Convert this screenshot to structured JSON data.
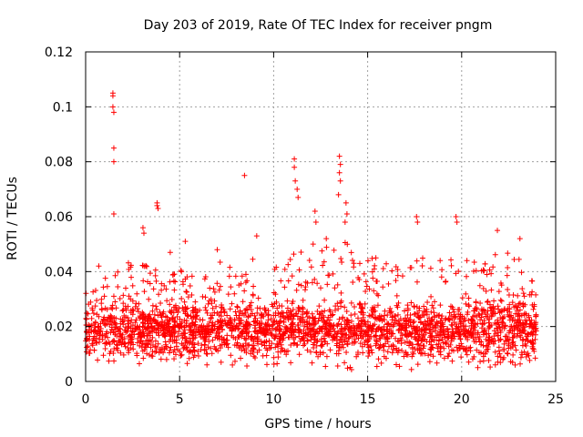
{
  "chart_data": {
    "type": "scatter",
    "title": "Day 203 of 2019, Rate Of TEC Index for receiver pngm",
    "xlabel": "GPS time / hours",
    "ylabel": "ROTI / TECUs",
    "xlim": [
      0,
      25
    ],
    "ylim": [
      0,
      0.12
    ],
    "xticks": [
      "0",
      "5",
      "10",
      "15",
      "20",
      "25"
    ],
    "yticks": [
      "0",
      "0.02",
      "0.04",
      "0.06",
      "0.08",
      "0.1",
      "0.12"
    ],
    "xtick_values": [
      0,
      5,
      10,
      15,
      20,
      25
    ],
    "ytick_values": [
      0,
      0.02,
      0.04,
      0.06,
      0.08,
      0.1,
      0.12
    ],
    "grid": true,
    "marker": "+",
    "series": [
      {
        "name": "ROTI",
        "color": "#ff0000",
        "outliers": [
          {
            "x": 1.45,
            "y": 0.105
          },
          {
            "x": 1.45,
            "y": 0.104
          },
          {
            "x": 1.45,
            "y": 0.1
          },
          {
            "x": 1.5,
            "y": 0.098
          },
          {
            "x": 1.5,
            "y": 0.085
          },
          {
            "x": 1.5,
            "y": 0.08
          },
          {
            "x": 1.5,
            "y": 0.061
          },
          {
            "x": 3.05,
            "y": 0.056
          },
          {
            "x": 3.1,
            "y": 0.054
          },
          {
            "x": 3.8,
            "y": 0.065
          },
          {
            "x": 3.8,
            "y": 0.064
          },
          {
            "x": 3.85,
            "y": 0.063
          },
          {
            "x": 8.45,
            "y": 0.075
          },
          {
            "x": 11.1,
            "y": 0.081
          },
          {
            "x": 11.1,
            "y": 0.078
          },
          {
            "x": 11.15,
            "y": 0.073
          },
          {
            "x": 11.25,
            "y": 0.07
          },
          {
            "x": 11.3,
            "y": 0.067
          },
          {
            "x": 12.2,
            "y": 0.062
          },
          {
            "x": 12.25,
            "y": 0.058
          },
          {
            "x": 12.1,
            "y": 0.05
          },
          {
            "x": 13.5,
            "y": 0.082
          },
          {
            "x": 13.55,
            "y": 0.079
          },
          {
            "x": 13.5,
            "y": 0.076
          },
          {
            "x": 13.55,
            "y": 0.073
          },
          {
            "x": 13.45,
            "y": 0.068
          },
          {
            "x": 13.85,
            "y": 0.065
          },
          {
            "x": 13.9,
            "y": 0.061
          },
          {
            "x": 13.8,
            "y": 0.058
          },
          {
            "x": 17.6,
            "y": 0.06
          },
          {
            "x": 17.65,
            "y": 0.058
          },
          {
            "x": 19.7,
            "y": 0.06
          },
          {
            "x": 19.75,
            "y": 0.058
          },
          {
            "x": 21.9,
            "y": 0.055
          },
          {
            "x": 23.1,
            "y": 0.052
          },
          {
            "x": 9.1,
            "y": 0.053
          },
          {
            "x": 12.8,
            "y": 0.052
          },
          {
            "x": 0.7,
            "y": 0.042
          },
          {
            "x": 4.5,
            "y": 0.047
          },
          {
            "x": 5.3,
            "y": 0.051
          },
          {
            "x": 7.0,
            "y": 0.048
          }
        ],
        "envelope": [
          {
            "x": 0.0,
            "lo": 0.008,
            "hi": 0.036
          },
          {
            "x": 1.0,
            "lo": 0.007,
            "hi": 0.038
          },
          {
            "x": 2.0,
            "lo": 0.006,
            "hi": 0.046
          },
          {
            "x": 3.0,
            "lo": 0.006,
            "hi": 0.045
          },
          {
            "x": 4.0,
            "lo": 0.006,
            "hi": 0.04
          },
          {
            "x": 5.0,
            "lo": 0.006,
            "hi": 0.042
          },
          {
            "x": 6.0,
            "lo": 0.006,
            "hi": 0.04
          },
          {
            "x": 7.0,
            "lo": 0.006,
            "hi": 0.045
          },
          {
            "x": 8.0,
            "lo": 0.005,
            "hi": 0.042
          },
          {
            "x": 9.0,
            "lo": 0.005,
            "hi": 0.046
          },
          {
            "x": 10.0,
            "lo": 0.005,
            "hi": 0.042
          },
          {
            "x": 11.0,
            "lo": 0.005,
            "hi": 0.05
          },
          {
            "x": 12.0,
            "lo": 0.003,
            "hi": 0.045
          },
          {
            "x": 13.0,
            "lo": 0.005,
            "hi": 0.05
          },
          {
            "x": 14.0,
            "lo": 0.004,
            "hi": 0.052
          },
          {
            "x": 15.0,
            "lo": 0.004,
            "hi": 0.045
          },
          {
            "x": 16.0,
            "lo": 0.005,
            "hi": 0.045
          },
          {
            "x": 17.0,
            "lo": 0.004,
            "hi": 0.045
          },
          {
            "x": 18.0,
            "lo": 0.004,
            "hi": 0.046
          },
          {
            "x": 19.0,
            "lo": 0.005,
            "hi": 0.045
          },
          {
            "x": 20.0,
            "lo": 0.005,
            "hi": 0.045
          },
          {
            "x": 21.0,
            "lo": 0.005,
            "hi": 0.043
          },
          {
            "x": 22.0,
            "lo": 0.005,
            "hi": 0.048
          },
          {
            "x": 23.0,
            "lo": 0.005,
            "hi": 0.046
          },
          {
            "x": 24.0,
            "lo": 0.005,
            "hi": 0.035
          }
        ],
        "typical_range": [
          0.008,
          0.03
        ],
        "sample_count": 2600
      }
    ]
  }
}
